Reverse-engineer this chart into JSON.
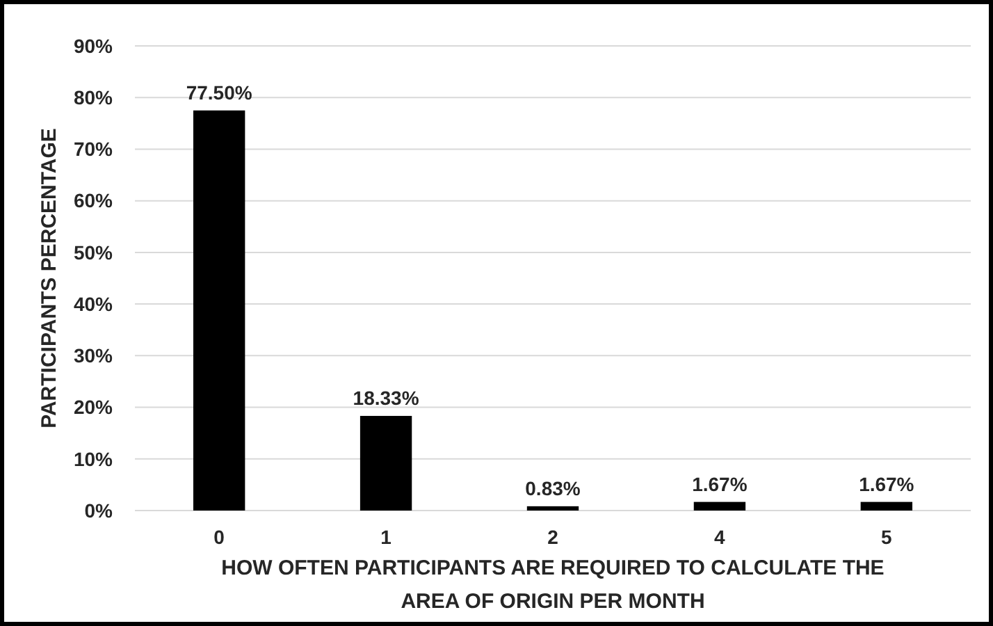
{
  "chart_data": {
    "type": "bar",
    "xlabel": "HOW OFTEN PARTICIPANTS ARE REQUIRED TO CALCULATE THE AREA OF ORIGIN PER MONTH",
    "ylabel": "PARTICIPANTS PERCENTAGE",
    "categories": [
      "0",
      "1",
      "2",
      "4",
      "5"
    ],
    "values": [
      77.5,
      18.33,
      0.83,
      1.67,
      1.67
    ],
    "value_labels": [
      "77.50%",
      "18.33%",
      "0.83%",
      "1.67%",
      "1.67%"
    ],
    "color": "#000000",
    "ylim": [
      0,
      90
    ],
    "yticks": [
      {
        "value": 0,
        "label": "0%"
      },
      {
        "value": 10,
        "label": "10%"
      },
      {
        "value": 20,
        "label": "20%"
      },
      {
        "value": 30,
        "label": "30%"
      },
      {
        "value": 40,
        "label": "40%"
      },
      {
        "value": 50,
        "label": "50%"
      },
      {
        "value": 60,
        "label": "60%"
      },
      {
        "value": 70,
        "label": "70%"
      },
      {
        "value": 80,
        "label": "80%"
      },
      {
        "value": 90,
        "label": "90%"
      }
    ],
    "grid": "y"
  }
}
